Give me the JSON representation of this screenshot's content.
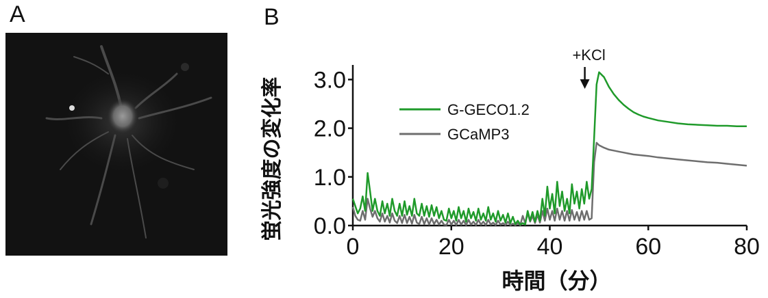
{
  "panels": {
    "a": "A",
    "b": "B"
  },
  "colors": {
    "g_geco": "#1f9a2a",
    "gcamp": "#6e6e6e",
    "axis": "#111111"
  },
  "chart_data": {
    "type": "line",
    "xlabel": "時間（分）",
    "ylabel": "蛍光強度の変化率",
    "xlim": [
      0,
      80
    ],
    "ylim": [
      0,
      3.3
    ],
    "xticks": [
      0,
      20,
      40,
      60,
      80
    ],
    "xtick_labels": [
      "0",
      "20",
      "40",
      "60",
      "80"
    ],
    "yticks": [
      0,
      1,
      2,
      3
    ],
    "ytick_labels": [
      "0.0",
      "1.0",
      "2.0",
      "3.0"
    ],
    "legend": "upper-left",
    "annotation": {
      "text": "+KCl",
      "x": 48.5
    },
    "series": [
      {
        "name": "G-GECO1.2",
        "color": "#1f9a2a",
        "x": [
          0,
          0.5,
          1,
          1.5,
          2,
          2.5,
          3,
          3.5,
          4,
          4.5,
          5,
          5.5,
          6,
          6.5,
          7,
          7.5,
          8,
          8.5,
          9,
          9.5,
          10,
          10.5,
          11,
          11.5,
          12,
          12.5,
          13,
          13.5,
          14,
          14.5,
          15,
          15.5,
          16,
          16.5,
          17,
          17.5,
          18,
          18.5,
          19,
          19.5,
          20,
          20.5,
          21,
          21.5,
          22,
          22.5,
          23,
          23.5,
          24,
          24.5,
          25,
          25.5,
          26,
          26.5,
          27,
          27.5,
          28,
          28.5,
          29,
          29.5,
          30,
          30.5,
          31,
          31.5,
          32,
          32.5,
          33,
          33.5,
          34,
          34.5,
          35,
          35.5,
          36,
          36.5,
          37,
          37.5,
          38,
          38.5,
          39,
          39.5,
          40,
          40.5,
          41,
          41.5,
          42,
          42.5,
          43,
          43.5,
          44,
          44.5,
          45,
          45.5,
          46,
          46.5,
          47,
          47.5,
          48,
          48.5,
          49,
          49.5,
          50,
          51,
          52,
          53,
          54,
          55,
          56,
          57,
          58,
          59,
          60,
          62,
          64,
          66,
          68,
          70,
          72,
          74,
          76,
          78,
          80
        ],
        "y": [
          0.55,
          0.4,
          0.25,
          0.35,
          0.6,
          0.3,
          1.08,
          0.7,
          0.3,
          0.55,
          0.3,
          0.2,
          0.5,
          0.25,
          0.45,
          0.2,
          0.55,
          0.3,
          0.2,
          0.45,
          0.2,
          0.5,
          0.22,
          0.4,
          0.2,
          0.55,
          0.25,
          0.2,
          0.45,
          0.2,
          0.4,
          0.18,
          0.42,
          0.2,
          0.38,
          0.15,
          0.3,
          0.12,
          0.1,
          0.35,
          0.15,
          0.3,
          0.1,
          0.38,
          0.15,
          0.3,
          0.08,
          0.35,
          0.15,
          0.28,
          0.1,
          0.35,
          0.12,
          0.25,
          0.1,
          0.38,
          0.12,
          0.25,
          0.08,
          0.3,
          0.1,
          0.22,
          0.06,
          0.25,
          0.05,
          0.18,
          0.03,
          0.1,
          0.02,
          0.05,
          0.02,
          0.3,
          0.1,
          0.28,
          0.08,
          0.3,
          0.1,
          0.55,
          0.2,
          0.8,
          0.35,
          0.65,
          0.25,
          0.9,
          0.4,
          0.7,
          0.3,
          0.55,
          0.25,
          0.85,
          0.45,
          0.7,
          0.35,
          0.75,
          0.45,
          0.9,
          0.55,
          0.75,
          1.8,
          2.9,
          3.15,
          3.05,
          2.85,
          2.7,
          2.58,
          2.48,
          2.4,
          2.33,
          2.28,
          2.24,
          2.21,
          2.16,
          2.13,
          2.1,
          2.08,
          2.07,
          2.06,
          2.05,
          2.05,
          2.04,
          2.04
        ]
      },
      {
        "name": "GCaMP3",
        "color": "#6e6e6e",
        "x": [
          0,
          0.5,
          1,
          1.5,
          2,
          2.5,
          3,
          3.5,
          4,
          4.5,
          5,
          5.5,
          6,
          6.5,
          7,
          7.5,
          8,
          8.5,
          9,
          9.5,
          10,
          10.5,
          11,
          11.5,
          12,
          12.5,
          13,
          13.5,
          14,
          14.5,
          15,
          15.5,
          16,
          16.5,
          17,
          17.5,
          18,
          18.5,
          19,
          19.5,
          20,
          20.5,
          21,
          21.5,
          22,
          22.5,
          23,
          23.5,
          24,
          24.5,
          25,
          25.5,
          26,
          26.5,
          27,
          27.5,
          28,
          28.5,
          29,
          29.5,
          30,
          30.5,
          31,
          31.5,
          32,
          32.5,
          33,
          33.5,
          34,
          34.5,
          35,
          35.5,
          36,
          36.5,
          37,
          37.5,
          38,
          38.5,
          39,
          39.5,
          40,
          40.5,
          41,
          41.5,
          42,
          42.5,
          43,
          43.5,
          44,
          44.5,
          45,
          45.5,
          46,
          46.5,
          47,
          47.5,
          48,
          48.5,
          49,
          49.5,
          50,
          51,
          52,
          53,
          54,
          55,
          56,
          57,
          58,
          59,
          60,
          62,
          64,
          66,
          68,
          70,
          72,
          74,
          76,
          78,
          80
        ],
        "y": [
          0.38,
          0.2,
          0.12,
          0.1,
          0.3,
          0.12,
          0.55,
          0.35,
          0.18,
          0.3,
          0.15,
          0.08,
          0.25,
          0.08,
          0.2,
          0.06,
          0.25,
          0.1,
          0.05,
          0.2,
          0.05,
          0.22,
          0.05,
          0.18,
          0.04,
          0.22,
          0.06,
          0.03,
          0.18,
          0.03,
          0.15,
          0.02,
          0.15,
          0.03,
          0.12,
          0.02,
          0.1,
          0.02,
          0.01,
          0.12,
          0.02,
          0.1,
          0.01,
          0.12,
          0.02,
          0.1,
          0.01,
          0.12,
          0.02,
          0.08,
          0.01,
          0.12,
          0.02,
          0.08,
          0.01,
          0.12,
          0.02,
          0.06,
          0.01,
          0.1,
          0.02,
          0.05,
          0.01,
          0.08,
          0.01,
          0.04,
          0.01,
          0.05,
          0.01,
          0.2,
          0.05,
          0.25,
          0.08,
          0.2,
          0.05,
          0.22,
          0.06,
          0.3,
          0.1,
          0.35,
          0.12,
          0.3,
          0.1,
          0.35,
          0.12,
          0.3,
          0.1,
          0.3,
          0.1,
          0.32,
          0.12,
          0.28,
          0.1,
          0.3,
          0.12,
          0.3,
          0.12,
          0.15,
          1.3,
          1.7,
          1.65,
          1.6,
          1.56,
          1.54,
          1.52,
          1.5,
          1.48,
          1.46,
          1.45,
          1.44,
          1.43,
          1.4,
          1.38,
          1.36,
          1.34,
          1.32,
          1.3,
          1.29,
          1.27,
          1.25,
          1.23
        ]
      }
    ]
  }
}
